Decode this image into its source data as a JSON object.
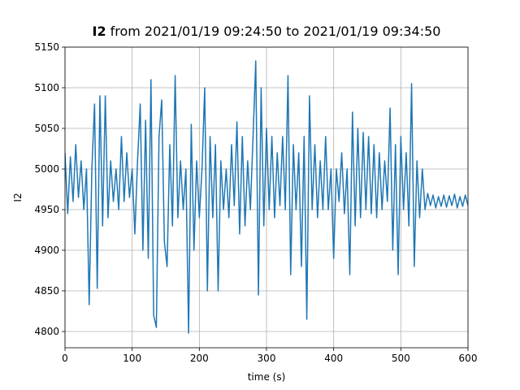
{
  "chart_data": {
    "type": "line",
    "title": {
      "bold": "I2",
      "text": "from 2021/01/19 09:24:50 to 2021/01/19 09:34:50"
    },
    "xlabel": "time (s)",
    "ylabel": "I2",
    "xlim": [
      0,
      600
    ],
    "xticks": [
      0,
      100,
      200,
      300,
      400,
      500,
      600
    ],
    "ylim": [
      4780,
      5150
    ],
    "yticks": [
      4800,
      4850,
      4900,
      4950,
      5000,
      5050,
      5100,
      5150
    ],
    "grid": true,
    "x": [
      0,
      4,
      8,
      12,
      16,
      20,
      24,
      28,
      32,
      36,
      40,
      44,
      48,
      52,
      56,
      60,
      64,
      68,
      72,
      76,
      80,
      84,
      88,
      92,
      96,
      100,
      104,
      108,
      112,
      116,
      120,
      124,
      128,
      132,
      136,
      140,
      144,
      148,
      152,
      156,
      160,
      164,
      168,
      172,
      176,
      180,
      184,
      188,
      192,
      196,
      200,
      204,
      208,
      212,
      216,
      220,
      224,
      228,
      232,
      236,
      240,
      244,
      248,
      252,
      256,
      260,
      264,
      268,
      272,
      276,
      280,
      284,
      288,
      292,
      296,
      300,
      304,
      308,
      312,
      316,
      320,
      324,
      328,
      332,
      336,
      340,
      344,
      348,
      352,
      356,
      360,
      364,
      368,
      372,
      376,
      380,
      384,
      388,
      392,
      396,
      400,
      404,
      408,
      412,
      416,
      420,
      424,
      428,
      432,
      436,
      440,
      444,
      448,
      452,
      456,
      460,
      464,
      468,
      472,
      476,
      480,
      484,
      488,
      492,
      496,
      500,
      504,
      508,
      512,
      516,
      520,
      524,
      528,
      532,
      536,
      540,
      544,
      548,
      552,
      556,
      560,
      564,
      568,
      572,
      576,
      580,
      584,
      588,
      592,
      596,
      600
    ],
    "series": [
      {
        "name": "I2",
        "color": "#1f77b4",
        "values": [
          5020,
          4945,
          5015,
          4960,
          5030,
          4965,
          5010,
          4950,
          5000,
          4833,
          5000,
          5080,
          4853,
          5090,
          4930,
          5090,
          4940,
          5010,
          4960,
          5000,
          4950,
          5040,
          4960,
          5020,
          4965,
          5000,
          4920,
          5010,
          5080,
          4900,
          5060,
          4890,
          5110,
          4820,
          4805,
          5040,
          5085,
          4910,
          4880,
          5030,
          4930,
          5115,
          4940,
          5010,
          4950,
          5000,
          4798,
          5055,
          4900,
          5010,
          4940,
          5000,
          5100,
          4850,
          5040,
          4940,
          5030,
          4850,
          5010,
          4950,
          5000,
          4940,
          5030,
          4955,
          5058,
          4920,
          5040,
          4930,
          5010,
          4950,
          5040,
          5133,
          4845,
          5100,
          4930,
          5050,
          4950,
          5040,
          4940,
          5020,
          4955,
          5040,
          4950,
          5115,
          4870,
          5030,
          4950,
          5020,
          4880,
          5040,
          4815,
          5090,
          4950,
          5030,
          4940,
          5010,
          4950,
          5040,
          4950,
          5000,
          4890,
          5000,
          4960,
          5020,
          4945,
          5000,
          4870,
          5070,
          4930,
          5050,
          4940,
          5045,
          4950,
          5040,
          4945,
          5030,
          4940,
          5020,
          4950,
          5010,
          4960,
          5075,
          4900,
          5030,
          4870,
          5040,
          4950,
          5020,
          4930,
          5105,
          4880,
          5010,
          4940,
          5000,
          4950,
          4970,
          4955,
          4968,
          4952,
          4966,
          4954,
          4968,
          4953,
          4967,
          4955,
          4969,
          4952,
          4966,
          4954,
          4968,
          4955
        ]
      }
    ]
  }
}
